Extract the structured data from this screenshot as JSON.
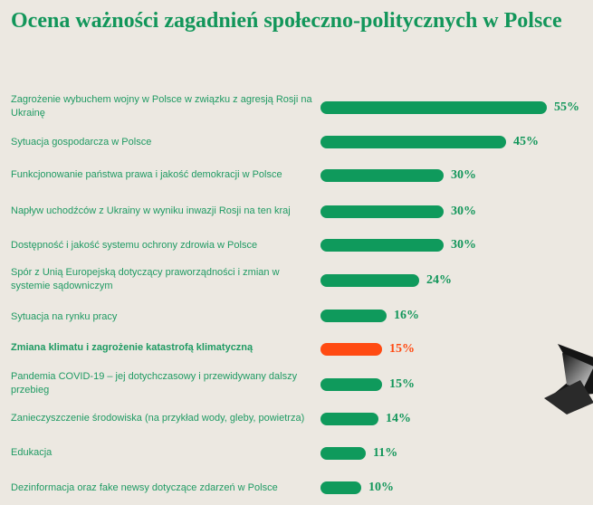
{
  "title": "Ocena ważności zagadnień społeczno-politycznych w Polsce",
  "colors": {
    "bar": "#0f9a5c",
    "highlight": "#ff4a12",
    "text": "#1f9a63",
    "background": "#ece8e1"
  },
  "chart_data": {
    "type": "bar",
    "orientation": "horizontal",
    "title": "Ocena ważności zagadnień społeczno-politycznych w Polsce",
    "unit": "%",
    "highlight_index": 7,
    "categories": [
      "Zagrożenie wybuchem wojny w Polsce w związku z agresją Rosji na Ukrainę",
      "Sytuacja gospodarcza w Polsce",
      "Funkcjonowanie państwa prawa i jakość demokracji w Polsce",
      "Napływ uchodźców z Ukrainy w wyniku inwazji Rosji na ten kraj",
      "Dostępność i jakość systemu ochrony zdrowia w Polsce",
      "Spór z Unią Europejską dotyczący praworządności i zmian w systemie sądowniczym",
      "Sytuacja na rynku pracy",
      "Zmiana klimatu i zagrożenie katastrofą klimatyczną",
      "Pandemia COVID-19 – jej dotychczasowy i przewidywany dalszy przebieg",
      "Zanieczyszczenie środowiska (na przykład wody, gleby, powietrza)",
      "Edukacja",
      "Dezinformacja oraz fake newsy dotyczące zdarzeń w Polsce"
    ],
    "values": [
      55,
      45,
      30,
      30,
      30,
      24,
      16,
      15,
      15,
      14,
      11,
      10
    ],
    "value_labels": [
      "55%",
      "45%",
      "30%",
      "30%",
      "30%",
      "24%",
      "16%",
      "15%",
      "15%",
      "14%",
      "11%",
      "10%"
    ],
    "xlim": [
      0,
      55
    ]
  }
}
